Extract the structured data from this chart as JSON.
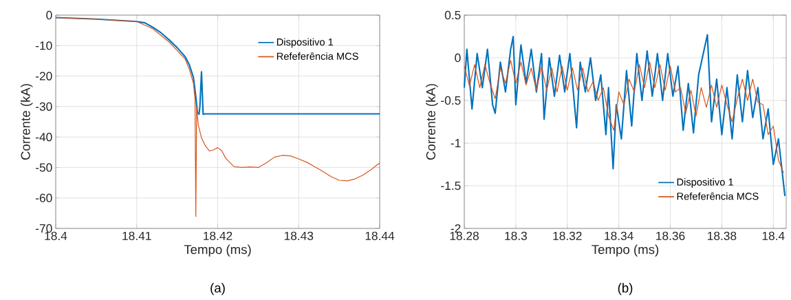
{
  "chart_data": [
    {
      "type": "line",
      "xlabel": "Tempo (ms)",
      "ylabel": "Corrente (kA)",
      "annotations": [
        "(a)"
      ],
      "xlim": [
        18.4,
        18.44
      ],
      "ylim": [
        -70,
        0
      ],
      "xticks": [
        18.4,
        18.41,
        18.42,
        18.43,
        18.44
      ],
      "yticks": [
        -70,
        -60,
        -50,
        -40,
        -30,
        -20,
        -10,
        0
      ],
      "grid": true,
      "legend": "top right",
      "series": [
        {
          "name": "Dispositivo 1",
          "color": "#0072bd",
          "x": [
            18.4,
            18.405,
            18.41,
            18.411,
            18.412,
            18.413,
            18.414,
            18.415,
            18.416,
            18.4165,
            18.417,
            18.4173,
            18.4175,
            18.4177,
            18.4178,
            18.418,
            18.4182,
            18.4185,
            18.44
          ],
          "values": [
            -0.8,
            -1.3,
            -2.1,
            -2.5,
            -4,
            -5.8,
            -8.1,
            -10.7,
            -13.7,
            -16.3,
            -20.4,
            -26.8,
            -32,
            -32.5,
            -30,
            -18.6,
            -32.5,
            -32.4,
            -32.4
          ]
        },
        {
          "name": "Refeferência MCS",
          "color": "#d95319",
          "x": [
            18.4,
            18.405,
            18.41,
            18.412,
            18.414,
            18.416,
            18.4165,
            18.417,
            18.4172,
            18.4173,
            18.4174,
            18.4176,
            18.418,
            18.4185,
            18.419,
            18.4195,
            18.42,
            18.4205,
            18.421,
            18.422,
            18.423,
            18.424,
            18.425,
            18.426,
            18.427,
            18.428,
            18.429,
            18.43,
            18.431,
            18.432,
            18.433,
            18.434,
            18.435,
            18.436,
            18.437,
            18.438,
            18.439,
            18.44
          ],
          "values": [
            -0.8,
            -1.3,
            -2.1,
            -4.5,
            -8.8,
            -14.5,
            -17.8,
            -22.3,
            -27.6,
            -66.1,
            -30,
            -36,
            -40.3,
            -43,
            -44.6,
            -44.2,
            -43.5,
            -44.5,
            -47,
            -49.7,
            -50,
            -49.8,
            -50,
            -48.5,
            -46.6,
            -46,
            -46.2,
            -47.2,
            -48.3,
            -49.8,
            -51.3,
            -53,
            -54.2,
            -54.4,
            -53.7,
            -52.4,
            -50.6,
            -48.5
          ]
        }
      ]
    },
    {
      "type": "line",
      "xlabel": "Tempo (ms)",
      "ylabel": "Corrente (kA)",
      "annotations": [
        "(b)"
      ],
      "xlim": [
        18.28,
        18.405
      ],
      "ylim": [
        -2,
        0.5
      ],
      "xticks": [
        18.28,
        18.3,
        18.32,
        18.34,
        18.36,
        18.38,
        18.4
      ],
      "yticks": [
        -2,
        -1.5,
        -1,
        -0.5,
        0,
        0.5
      ],
      "grid": true,
      "legend": "bottom right",
      "series": [
        {
          "name": "Dispositivo 1",
          "color": "#0072bd",
          "x": [
            18.28,
            18.281,
            18.283,
            18.285,
            18.287,
            18.289,
            18.291,
            18.292,
            18.294,
            18.296,
            18.298,
            18.299,
            18.3,
            18.302,
            18.304,
            18.306,
            18.308,
            18.31,
            18.311,
            18.313,
            18.315,
            18.317,
            18.319,
            18.321,
            18.3236,
            18.325,
            18.327,
            18.329,
            18.331,
            18.333,
            18.335,
            18.336,
            18.3378,
            18.339,
            18.341,
            18.343,
            18.345,
            18.347,
            18.349,
            18.351,
            18.353,
            18.355,
            18.357,
            18.359,
            18.361,
            18.363,
            18.365,
            18.367,
            18.369,
            18.371,
            18.3744,
            18.376,
            18.378,
            18.38,
            18.382,
            18.384,
            18.386,
            18.388,
            18.39,
            18.392,
            18.394,
            18.396,
            18.398,
            18.4,
            18.402,
            18.4045
          ],
          "values": [
            -0.35,
            0.1,
            -0.6,
            0.05,
            -0.35,
            0.1,
            -0.55,
            -0.65,
            -0.05,
            -0.4,
            0.1,
            0.25,
            -0.55,
            0.15,
            -0.3,
            0.1,
            -0.4,
            0.05,
            -0.72,
            0,
            -0.45,
            0.03,
            -0.4,
            0.05,
            -0.82,
            -0.05,
            -0.4,
            0,
            -0.5,
            -0.2,
            -0.9,
            -0.35,
            -1.3,
            -0.55,
            -0.95,
            -0.15,
            -0.8,
            0.05,
            -0.5,
            0.08,
            -0.45,
            0.05,
            -0.5,
            0.05,
            -0.45,
            -0.1,
            -0.85,
            -0.3,
            -0.88,
            -0.2,
            0.27,
            -0.75,
            -0.25,
            -0.9,
            -0.35,
            -0.95,
            -0.2,
            -0.75,
            -0.15,
            -0.7,
            -0.35,
            -0.95,
            -0.6,
            -1.25,
            -0.95,
            -1.62
          ]
        },
        {
          "name": "Refeferência MCS",
          "color": "#d95319",
          "x": [
            18.28,
            18.282,
            18.284,
            18.286,
            18.288,
            18.29,
            18.292,
            18.294,
            18.296,
            18.298,
            18.3,
            18.302,
            18.304,
            18.306,
            18.308,
            18.31,
            18.312,
            18.314,
            18.316,
            18.318,
            18.32,
            18.322,
            18.324,
            18.326,
            18.328,
            18.33,
            18.332,
            18.334,
            18.336,
            18.338,
            18.34,
            18.342,
            18.344,
            18.346,
            18.348,
            18.35,
            18.352,
            18.354,
            18.356,
            18.358,
            18.36,
            18.362,
            18.364,
            18.366,
            18.368,
            18.37,
            18.372,
            18.374,
            18.376,
            18.378,
            18.38,
            18.382,
            18.384,
            18.386,
            18.388,
            18.39,
            18.392,
            18.394,
            18.396,
            18.398,
            18.4,
            18.402,
            18.404
          ],
          "values": [
            -0.1,
            -0.33,
            -0.08,
            -0.35,
            -0.08,
            -0.3,
            -0.48,
            -0.12,
            -0.3,
            -0.03,
            -0.3,
            -0.05,
            -0.32,
            -0.12,
            -0.38,
            -0.1,
            -0.38,
            -0.12,
            -0.4,
            -0.1,
            -0.38,
            -0.12,
            -0.38,
            -0.12,
            -0.4,
            -0.28,
            -0.5,
            -0.35,
            -0.68,
            -0.85,
            -0.4,
            -0.55,
            -0.25,
            -0.4,
            -0.08,
            -0.35,
            -0.05,
            -0.35,
            -0.08,
            -0.38,
            -0.1,
            -0.4,
            -0.35,
            -0.65,
            -0.38,
            -0.68,
            -0.35,
            -0.58,
            -0.32,
            -0.58,
            -0.32,
            -0.55,
            -0.75,
            -0.48,
            -0.25,
            -0.5,
            -0.25,
            -0.52,
            -0.55,
            -0.9,
            -0.8,
            -1.2,
            -1.35
          ]
        }
      ]
    }
  ]
}
